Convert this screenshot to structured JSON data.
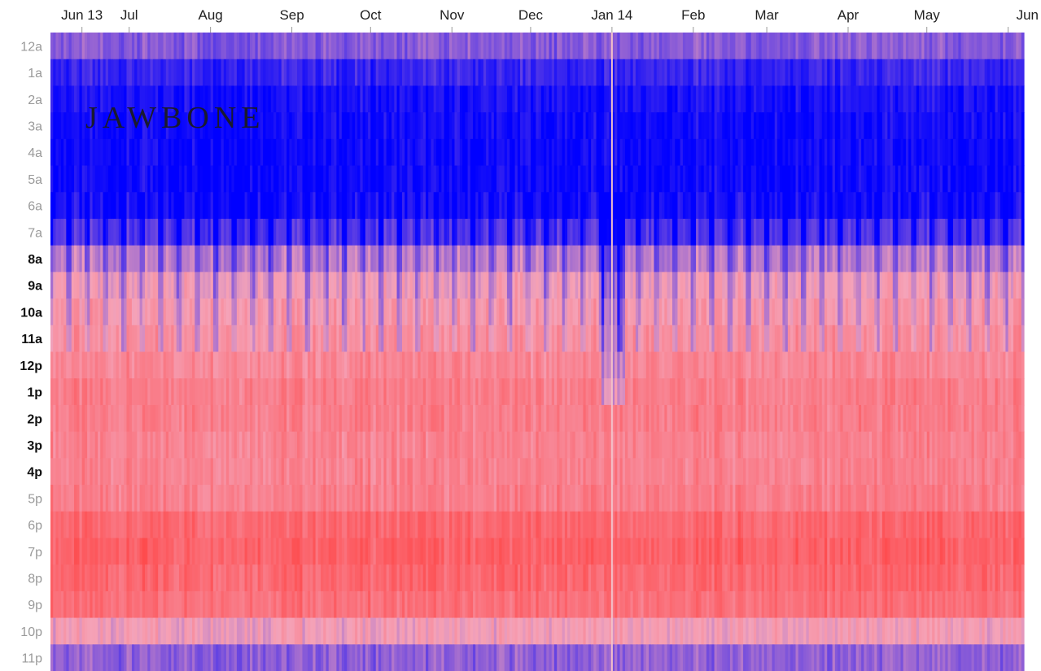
{
  "brand": "JAWBONE",
  "chart_data": {
    "type": "heatmap",
    "x_axis": {
      "kind": "date",
      "range": [
        "2013-06-01",
        "2014-06-07"
      ],
      "ticks": [
        {
          "date": "2013-06-13",
          "label": "Jun 13"
        },
        {
          "date": "2013-07-01",
          "label": "Jul"
        },
        {
          "date": "2013-08-01",
          "label": "Aug"
        },
        {
          "date": "2013-09-01",
          "label": "Sep"
        },
        {
          "date": "2013-10-01",
          "label": "Oct"
        },
        {
          "date": "2013-11-01",
          "label": "Nov"
        },
        {
          "date": "2013-12-01",
          "label": "Dec"
        },
        {
          "date": "2014-01-01",
          "label": "Jan 14"
        },
        {
          "date": "2014-02-01",
          "label": "Feb"
        },
        {
          "date": "2014-03-01",
          "label": "Mar"
        },
        {
          "date": "2014-04-01",
          "label": "Apr"
        },
        {
          "date": "2014-05-01",
          "label": "May"
        },
        {
          "date": "2014-06-01",
          "label": "Jun"
        }
      ]
    },
    "y_axis": {
      "labels": [
        "12a",
        "1a",
        "2a",
        "3a",
        "4a",
        "5a",
        "6a",
        "7a",
        "8a",
        "9a",
        "10a",
        "11a",
        "12p",
        "1p",
        "2p",
        "3p",
        "4p",
        "5p",
        "6p",
        "7p",
        "8p",
        "9p",
        "10p",
        "11p"
      ],
      "emphasized": [
        "8a",
        "9a",
        "10a",
        "11a",
        "12p",
        "1p",
        "2p",
        "3p",
        "4p"
      ]
    },
    "hourly_levels": [
      0.3,
      0.12,
      0.05,
      0.03,
      0.02,
      0.02,
      0.05,
      0.18,
      0.42,
      0.55,
      0.6,
      0.65,
      0.68,
      0.72,
      0.72,
      0.7,
      0.7,
      0.72,
      0.82,
      0.85,
      0.82,
      0.78,
      0.55,
      0.32
    ],
    "color_scale": {
      "low": "#0000ff",
      "mid": "#f5a3b8",
      "high": "#ff4040"
    },
    "annotations": [
      {
        "date": "2014-01-01",
        "note": "light vertical line at Jan 14"
      }
    ]
  }
}
